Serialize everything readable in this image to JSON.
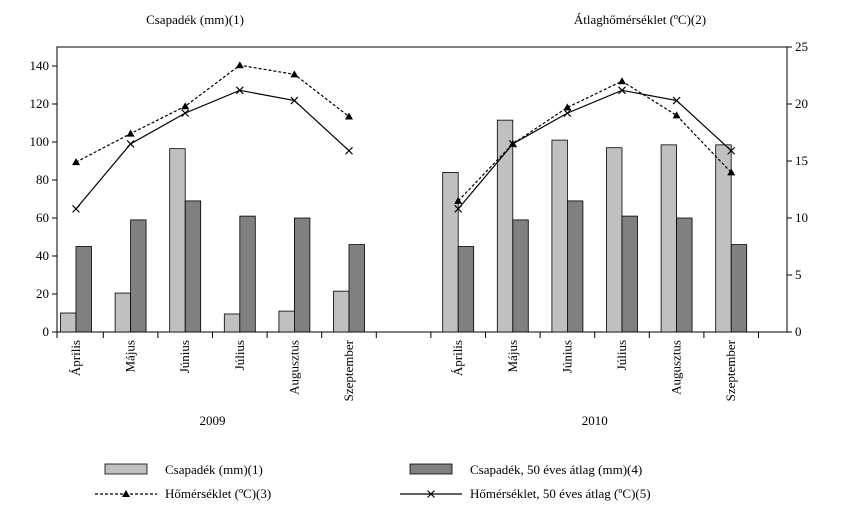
{
  "chart_data": {
    "type": "bar-line",
    "y_title": "Csapadék (mm)(1)",
    "y2_title": "Átlaghőmérséklet (ºC)(2)",
    "categories": [
      "Április",
      "Május",
      "Június",
      "Július",
      "Augusztus",
      "Szeptember",
      null,
      "Április",
      "Május",
      "Június",
      "Július",
      "Augusztus",
      "Szeptember"
    ],
    "groups": [
      "2009",
      "2010"
    ],
    "ylim": [
      0,
      150
    ],
    "yticks": [
      0,
      20,
      40,
      60,
      80,
      100,
      120,
      140
    ],
    "y2lim": [
      0,
      25
    ],
    "y2ticks": [
      0,
      5,
      10,
      15,
      20,
      25
    ],
    "series": [
      {
        "name": "Csapadék (mm)(1)",
        "kind": "bar",
        "color": "#c0c0c0",
        "values": [
          10,
          20.5,
          96.5,
          9.5,
          11,
          21.5,
          null,
          84,
          111.5,
          101,
          97,
          98.5,
          98.5
        ]
      },
      {
        "name": "Csapadék, 50 éves átlag (mm)(4)",
        "kind": "bar",
        "color": "#808080",
        "values": [
          45,
          59,
          69,
          61,
          60,
          46,
          null,
          45,
          59,
          69,
          61,
          60,
          46
        ]
      },
      {
        "name": "Hőmérséklet (ºC)(3)",
        "kind": "line",
        "axis": "y2",
        "color": "#000000",
        "dash": true,
        "marker": "triangle",
        "values": [
          14.9,
          17.4,
          19.8,
          23.4,
          22.6,
          18.9,
          null,
          11.5,
          16.5,
          19.7,
          22.0,
          19.0,
          14.0
        ]
      },
      {
        "name": "Hőmérséklet, 50 éves átlag (ºC)(5)",
        "kind": "line",
        "axis": "y2",
        "color": "#000000",
        "dash": false,
        "marker": "x",
        "values": [
          10.8,
          16.5,
          19.2,
          21.2,
          20.3,
          15.9,
          null,
          10.8,
          16.5,
          19.2,
          21.2,
          20.3,
          15.9
        ]
      }
    ]
  }
}
